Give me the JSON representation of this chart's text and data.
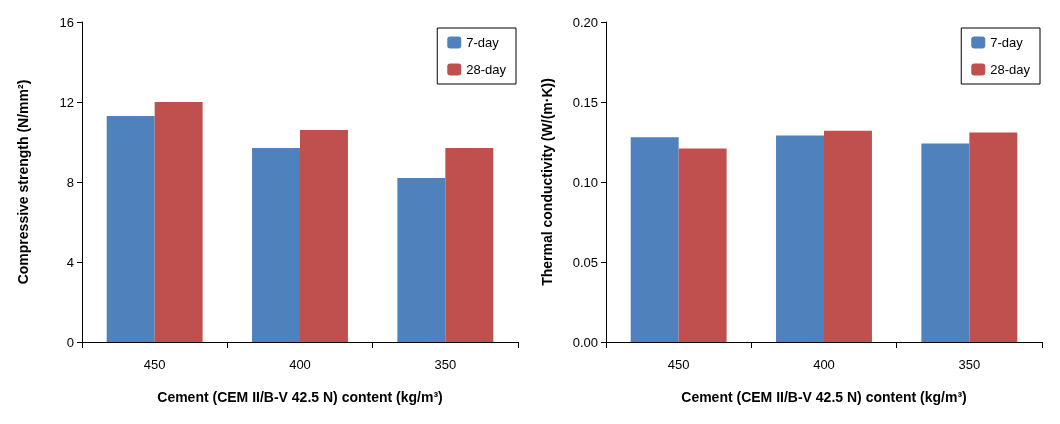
{
  "chart_data": [
    {
      "type": "bar",
      "xlabel": "Cement (CEM II/B-V 42.5 N) content (kg/m³)",
      "ylabel": "Compressive strength (N/mm²)",
      "categories": [
        "450",
        "400",
        "350"
      ],
      "series": [
        {
          "name": "7-day",
          "color": "#4f81bd",
          "values": [
            11.3,
            9.7,
            8.2
          ]
        },
        {
          "name": "28-day",
          "color": "#c0504d",
          "values": [
            12.0,
            10.6,
            9.7
          ]
        }
      ],
      "ylim": [
        0,
        16
      ],
      "yticks": [
        0,
        4,
        8,
        12,
        16
      ],
      "grid": false,
      "legend": "top right"
    },
    {
      "type": "bar",
      "xlabel": "Cement (CEM II/B-V 42.5 N) content (kg/m³)",
      "ylabel": "Thermal conductivity (W/(m·K))",
      "categories": [
        "450",
        "400",
        "350"
      ],
      "series": [
        {
          "name": "7-day",
          "color": "#4f81bd",
          "values": [
            0.128,
            0.129,
            0.124
          ]
        },
        {
          "name": "28-day",
          "color": "#c0504d",
          "values": [
            0.121,
            0.132,
            0.131
          ]
        }
      ],
      "ylim": [
        0,
        0.2
      ],
      "yticks": [
        {
          "value": 0,
          "label": "0.00"
        },
        {
          "value": 0.05,
          "label": "0.05"
        },
        {
          "value": 0.1,
          "label": "0.10"
        },
        {
          "value": 0.15,
          "label": "0.15"
        },
        {
          "value": 0.2,
          "label": "0.20"
        }
      ],
      "grid": false,
      "legend": "top right"
    }
  ]
}
